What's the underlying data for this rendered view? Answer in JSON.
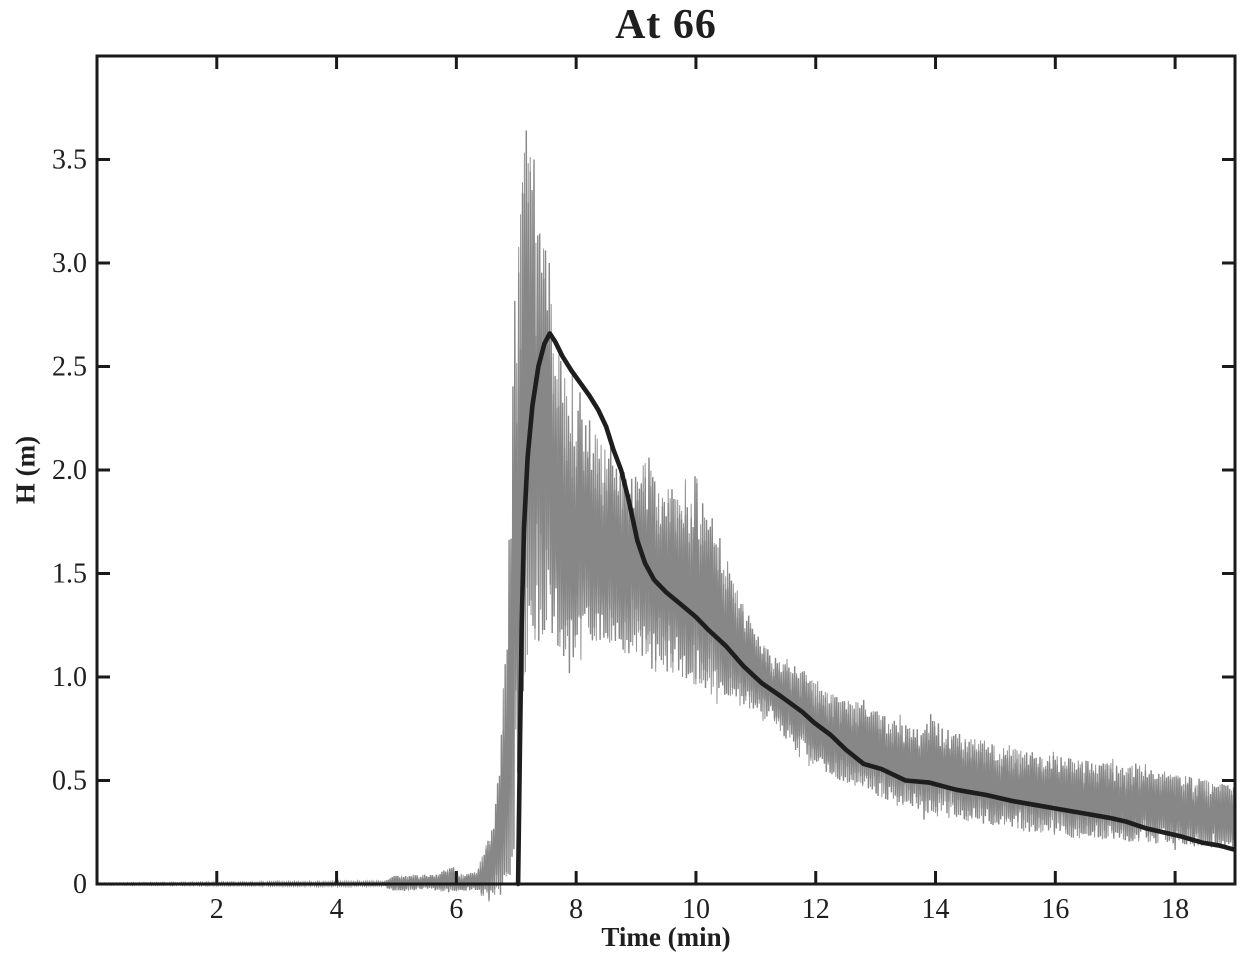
{
  "figure": {
    "title": "At 66",
    "xlabel": "Time (min)",
    "ylabel": "H (m)"
  },
  "chart_data": {
    "type": "line",
    "title": "At 66",
    "xlabel": "Time (min)",
    "ylabel": "H (m)",
    "xlim": [
      0,
      19
    ],
    "ylim": [
      0,
      4
    ],
    "xticks": [
      2,
      4,
      6,
      8,
      10,
      12,
      14,
      16,
      18
    ],
    "xtick_labels": [
      "2",
      "4",
      "6",
      "8",
      "10",
      "12",
      "14",
      "16",
      "18"
    ],
    "yticks": [
      0,
      0.5,
      1.0,
      1.5,
      2.0,
      2.5,
      3.0,
      3.5
    ],
    "ytick_labels": [
      "0",
      "0.5",
      "1.0",
      "1.5",
      "2.0",
      "2.5",
      "3.0",
      "3.5"
    ],
    "grid": false,
    "legend": null,
    "colors": {
      "noisy_signal": "#878787",
      "smoothed_line": "#1e1e1e",
      "axis": "#1a1a1a",
      "background": "#ffffff"
    },
    "series": [
      {
        "name": "raw noisy H signal",
        "type": "noisy-band",
        "color": "#878787",
        "stroke_width": 1.4,
        "noise": {
          "seed": 660613,
          "dt": 0.016,
          "min_frac": 0.32
        },
        "envelope": [
          [
            0,
            -0.004,
            0.004
          ],
          [
            4.8,
            -0.01,
            0.012
          ],
          [
            4.95,
            -0.035,
            0.04
          ],
          [
            5.6,
            -0.03,
            0.045
          ],
          [
            5.95,
            -0.045,
            0.085
          ],
          [
            6.1,
            -0.035,
            0.05
          ],
          [
            6.35,
            -0.03,
            0.06
          ],
          [
            6.5,
            -0.09,
            0.22
          ],
          [
            6.62,
            -0.12,
            0.3
          ],
          [
            6.72,
            -0.06,
            0.6
          ],
          [
            6.8,
            -0.03,
            1.0
          ],
          [
            6.87,
            0,
            1.55
          ],
          [
            6.93,
            0.05,
            2.35
          ],
          [
            7.0,
            0.3,
            2.95
          ],
          [
            7.08,
            0.65,
            3.35
          ],
          [
            7.16,
            1.0,
            3.64
          ],
          [
            7.24,
            1.1,
            3.5
          ],
          [
            7.33,
            1.15,
            3.28
          ],
          [
            7.42,
            1.18,
            3.08
          ],
          [
            7.53,
            1.2,
            2.98
          ],
          [
            7.63,
            1.15,
            2.68
          ],
          [
            7.75,
            1.1,
            2.52
          ],
          [
            7.88,
            0.97,
            2.42
          ],
          [
            8.0,
            1.12,
            2.36
          ],
          [
            8.2,
            1.18,
            2.26
          ],
          [
            8.45,
            1.15,
            2.1
          ],
          [
            8.7,
            1.12,
            2.02
          ],
          [
            9.0,
            1.1,
            1.98
          ],
          [
            9.2,
            1.08,
            2.05
          ],
          [
            9.4,
            1.05,
            1.88
          ],
          [
            9.6,
            1.0,
            1.93
          ],
          [
            9.8,
            0.98,
            1.88
          ],
          [
            10.0,
            0.96,
            1.95
          ],
          [
            10.2,
            0.93,
            1.78
          ],
          [
            10.35,
            0.91,
            1.68
          ],
          [
            10.55,
            0.89,
            1.52
          ],
          [
            10.8,
            0.85,
            1.36
          ],
          [
            11.1,
            0.8,
            1.17
          ],
          [
            11.4,
            0.74,
            1.07
          ],
          [
            11.7,
            0.63,
            1.05
          ],
          [
            12.0,
            0.57,
            0.97
          ],
          [
            12.4,
            0.5,
            0.9
          ],
          [
            12.8,
            0.46,
            0.87
          ],
          [
            13.2,
            0.4,
            0.81
          ],
          [
            13.6,
            0.36,
            0.78
          ],
          [
            13.95,
            0.33,
            0.8
          ],
          [
            14.4,
            0.31,
            0.73
          ],
          [
            14.8,
            0.29,
            0.69
          ],
          [
            15.2,
            0.27,
            0.66
          ],
          [
            15.6,
            0.25,
            0.64
          ],
          [
            16.0,
            0.23,
            0.62
          ],
          [
            16.4,
            0.22,
            0.6
          ],
          [
            16.9,
            0.21,
            0.59
          ],
          [
            17.4,
            0.2,
            0.57
          ],
          [
            17.9,
            0.19,
            0.54
          ],
          [
            18.4,
            0.18,
            0.51
          ],
          [
            18.7,
            0.17,
            0.49
          ],
          [
            19.0,
            0.17,
            0.47
          ]
        ],
        "forced_peaks": [
          [
            7.16,
            3.64
          ],
          [
            7.3,
            3.5
          ],
          [
            7.47,
            3.06
          ],
          [
            7.56,
            3.0
          ],
          [
            9.22,
            2.06
          ],
          [
            9.98,
            1.97
          ],
          [
            13.9,
            0.82
          ]
        ]
      },
      {
        "name": "smoothed H curve",
        "type": "line",
        "color": "#1e1e1e",
        "stroke_width": 4.6,
        "points": [
          [
            7.03,
            0
          ],
          [
            7.06,
            0.65
          ],
          [
            7.09,
            1.25
          ],
          [
            7.13,
            1.72
          ],
          [
            7.19,
            2.06
          ],
          [
            7.27,
            2.31
          ],
          [
            7.37,
            2.5
          ],
          [
            7.47,
            2.61
          ],
          [
            7.56,
            2.66
          ],
          [
            7.65,
            2.62
          ],
          [
            7.77,
            2.55
          ],
          [
            7.92,
            2.48
          ],
          [
            8.07,
            2.42
          ],
          [
            8.22,
            2.36
          ],
          [
            8.37,
            2.29
          ],
          [
            8.5,
            2.21
          ],
          [
            8.62,
            2.1
          ],
          [
            8.75,
            2.0
          ],
          [
            8.88,
            1.85
          ],
          [
            9.02,
            1.66
          ],
          [
            9.15,
            1.55
          ],
          [
            9.3,
            1.47
          ],
          [
            9.5,
            1.41
          ],
          [
            9.75,
            1.35
          ],
          [
            10.0,
            1.29
          ],
          [
            10.2,
            1.23
          ],
          [
            10.5,
            1.15
          ],
          [
            10.8,
            1.05
          ],
          [
            11.1,
            0.97
          ],
          [
            11.45,
            0.9
          ],
          [
            11.78,
            0.83
          ],
          [
            11.97,
            0.78
          ],
          [
            12.25,
            0.72
          ],
          [
            12.5,
            0.65
          ],
          [
            12.8,
            0.58
          ],
          [
            13.1,
            0.555
          ],
          [
            13.5,
            0.5
          ],
          [
            13.9,
            0.49
          ],
          [
            14.35,
            0.455
          ],
          [
            14.85,
            0.43
          ],
          [
            15.3,
            0.4
          ],
          [
            15.7,
            0.38
          ],
          [
            16.1,
            0.36
          ],
          [
            16.5,
            0.34
          ],
          [
            16.9,
            0.32
          ],
          [
            17.2,
            0.3
          ],
          [
            17.5,
            0.27
          ],
          [
            17.8,
            0.25
          ],
          [
            18.1,
            0.23
          ],
          [
            18.45,
            0.2
          ],
          [
            18.75,
            0.185
          ],
          [
            19.0,
            0.165
          ]
        ]
      }
    ]
  }
}
